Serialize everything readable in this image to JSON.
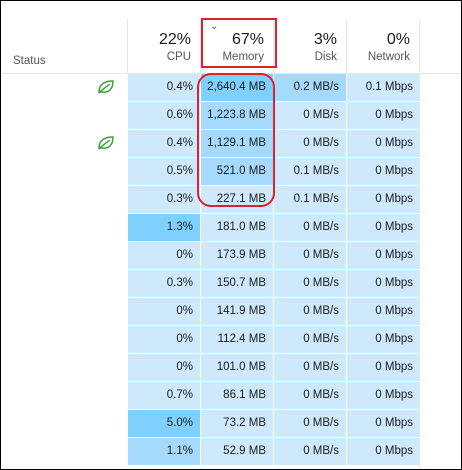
{
  "header": {
    "status_label": "Status",
    "columns": {
      "cpu": {
        "percent": "22%",
        "label": "CPU"
      },
      "memory": {
        "percent": "67%",
        "label": "Memory",
        "sorted": true
      },
      "disk": {
        "percent": "3%",
        "label": "Disk"
      },
      "network": {
        "percent": "0%",
        "label": "Network"
      }
    }
  },
  "colors": {
    "light_bg": "#cde9fb",
    "mid_bg": "#a6dafc",
    "strong_bg": "#7ed0ff",
    "highlight_red": "#e0202a",
    "eco_green": "#3e9e3e"
  },
  "rows": [
    {
      "eco": true,
      "cpu": "0.4%",
      "memory": "2,640.4 MB",
      "disk": "0.2 MB/s",
      "network": "0.1 Mbps",
      "cpu_bg": "#cde9fb",
      "mem_bg": "#7ed0ff",
      "disk_bg": "#a6dafc",
      "net_bg": "#cde9fb"
    },
    {
      "eco": false,
      "cpu": "0.6%",
      "memory": "1,223.8 MB",
      "disk": "0 MB/s",
      "network": "0 Mbps",
      "cpu_bg": "#cde9fb",
      "mem_bg": "#a6dafc",
      "disk_bg": "#cde9fb",
      "net_bg": "#cde9fb"
    },
    {
      "eco": true,
      "cpu": "0.4%",
      "memory": "1,129.1 MB",
      "disk": "0 MB/s",
      "network": "0 Mbps",
      "cpu_bg": "#cde9fb",
      "mem_bg": "#a6dafc",
      "disk_bg": "#cde9fb",
      "net_bg": "#cde9fb"
    },
    {
      "eco": false,
      "cpu": "0.5%",
      "memory": "521.0 MB",
      "disk": "0.1 MB/s",
      "network": "0 Mbps",
      "cpu_bg": "#cde9fb",
      "mem_bg": "#a6dafc",
      "disk_bg": "#cde9fb",
      "net_bg": "#cde9fb"
    },
    {
      "eco": false,
      "cpu": "0.3%",
      "memory": "227.1 MB",
      "disk": "0.1 MB/s",
      "network": "0 Mbps",
      "cpu_bg": "#cde9fb",
      "mem_bg": "#cde9fb",
      "disk_bg": "#cde9fb",
      "net_bg": "#cde9fb"
    },
    {
      "eco": false,
      "cpu": "1.3%",
      "memory": "181.0 MB",
      "disk": "0 MB/s",
      "network": "0 Mbps",
      "cpu_bg": "#7ed0ff",
      "mem_bg": "#cde9fb",
      "disk_bg": "#cde9fb",
      "net_bg": "#cde9fb"
    },
    {
      "eco": false,
      "cpu": "0%",
      "memory": "173.9 MB",
      "disk": "0 MB/s",
      "network": "0 Mbps",
      "cpu_bg": "#cde9fb",
      "mem_bg": "#cde9fb",
      "disk_bg": "#cde9fb",
      "net_bg": "#cde9fb"
    },
    {
      "eco": false,
      "cpu": "0.3%",
      "memory": "150.7 MB",
      "disk": "0 MB/s",
      "network": "0 Mbps",
      "cpu_bg": "#cde9fb",
      "mem_bg": "#cde9fb",
      "disk_bg": "#cde9fb",
      "net_bg": "#cde9fb"
    },
    {
      "eco": false,
      "cpu": "0%",
      "memory": "141.9 MB",
      "disk": "0 MB/s",
      "network": "0 Mbps",
      "cpu_bg": "#cde9fb",
      "mem_bg": "#cde9fb",
      "disk_bg": "#cde9fb",
      "net_bg": "#cde9fb"
    },
    {
      "eco": false,
      "cpu": "0%",
      "memory": "112.4 MB",
      "disk": "0 MB/s",
      "network": "0 Mbps",
      "cpu_bg": "#cde9fb",
      "mem_bg": "#cde9fb",
      "disk_bg": "#cde9fb",
      "net_bg": "#cde9fb"
    },
    {
      "eco": false,
      "cpu": "0%",
      "memory": "101.0 MB",
      "disk": "0 MB/s",
      "network": "0 Mbps",
      "cpu_bg": "#cde9fb",
      "mem_bg": "#cde9fb",
      "disk_bg": "#cde9fb",
      "net_bg": "#cde9fb"
    },
    {
      "eco": false,
      "cpu": "0.7%",
      "memory": "86.1 MB",
      "disk": "0 MB/s",
      "network": "0 Mbps",
      "cpu_bg": "#cde9fb",
      "mem_bg": "#cde9fb",
      "disk_bg": "#cde9fb",
      "net_bg": "#cde9fb"
    },
    {
      "eco": false,
      "cpu": "5.0%",
      "memory": "73.2 MB",
      "disk": "0 MB/s",
      "network": "0 Mbps",
      "cpu_bg": "#7ed0ff",
      "mem_bg": "#cde9fb",
      "disk_bg": "#cde9fb",
      "net_bg": "#cde9fb"
    },
    {
      "eco": false,
      "cpu": "1.1%",
      "memory": "52.9 MB",
      "disk": "0 MB/s",
      "network": "0 Mbps",
      "cpu_bg": "#a6dafc",
      "mem_bg": "#cde9fb",
      "disk_bg": "#cde9fb",
      "net_bg": "#cde9fb"
    }
  ]
}
